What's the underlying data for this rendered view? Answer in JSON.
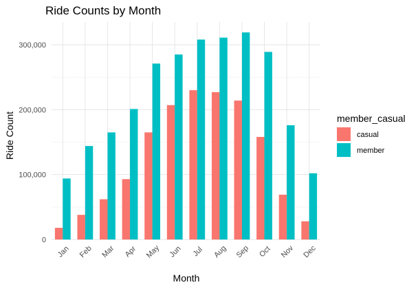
{
  "chart_data": {
    "type": "bar",
    "title": "Ride Counts by Month",
    "xlabel": "Month",
    "ylabel": "Ride Count",
    "categories": [
      "Jan",
      "Feb",
      "Mar",
      "Apr",
      "May",
      "Jun",
      "Jul",
      "Aug",
      "Sep",
      "Oct",
      "Nov",
      "Dec"
    ],
    "series": [
      {
        "name": "casual",
        "color": "#F8766D",
        "values": [
          18000,
          38000,
          62000,
          93000,
          165000,
          207000,
          230000,
          227000,
          214000,
          158000,
          69000,
          28000
        ]
      },
      {
        "name": "member",
        "color": "#00BFC4",
        "values": [
          94000,
          144000,
          165000,
          201000,
          271000,
          285000,
          308000,
          311000,
          319000,
          289000,
          176000,
          102000
        ]
      }
    ],
    "ylim": [
      0,
      335000
    ],
    "yticks": [
      0,
      100000,
      200000,
      300000
    ],
    "ytick_labels": [
      "0",
      "100,000",
      "200,000",
      "300,000"
    ],
    "legend": {
      "title": "member_casual",
      "position": "right"
    },
    "grid": true
  }
}
